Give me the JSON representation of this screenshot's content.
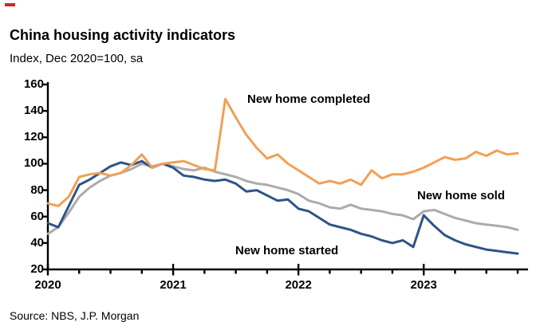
{
  "page": {
    "title": "China housing activity indicators",
    "subtitle": "Index, Dec 2020=100, sa",
    "source": "Source: NBS, J.P. Morgan",
    "accent_color": "#e02020",
    "axis_color": "#000000"
  },
  "chart_data": {
    "type": "line",
    "title": "China housing activity indicators",
    "subtitle": "Index, Dec 2020=100, sa",
    "x_unit": "month",
    "x_range": [
      "Jan 2020",
      "Oct 2023"
    ],
    "x_tick_labels": [
      "2020",
      "2021",
      "2022",
      "2023"
    ],
    "y_ticks": [
      20,
      40,
      60,
      80,
      100,
      120,
      140,
      160
    ],
    "ylim": [
      20,
      160
    ],
    "grid": false,
    "legend_position": "inline-annotations",
    "series": [
      {
        "name": "New home sold",
        "color": "#ABABAB",
        "values": [
          47,
          52,
          63,
          75,
          82,
          87,
          91,
          93,
          96,
          100,
          98,
          100,
          98,
          96,
          95,
          97,
          94,
          92,
          90,
          87,
          85,
          84,
          82,
          80,
          77,
          72,
          70,
          67,
          66,
          69,
          66,
          65,
          64,
          62,
          61,
          58,
          64,
          65,
          62,
          59,
          57,
          55,
          54,
          53,
          52,
          50
        ]
      },
      {
        "name": "New home started",
        "color": "#2F5488",
        "values": [
          55,
          52,
          68,
          84,
          88,
          93,
          98,
          101,
          99,
          102,
          97,
          100,
          97,
          91,
          90,
          88,
          87,
          88,
          85,
          79,
          80,
          76,
          72,
          73,
          66,
          64,
          59,
          54,
          52,
          50,
          47,
          45,
          42,
          40,
          42,
          37,
          61,
          53,
          46,
          42,
          39,
          37,
          35,
          34,
          33,
          32
        ]
      },
      {
        "name": "New home completed",
        "color": "#F0A055",
        "values": [
          70,
          68,
          75,
          90,
          92,
          93,
          91,
          93,
          99,
          107,
          97,
          100,
          101,
          102,
          99,
          96,
          95,
          149,
          135,
          122,
          112,
          104,
          107,
          100,
          95,
          90,
          85,
          87,
          85,
          88,
          84,
          95,
          89,
          92,
          92,
          94,
          97,
          101,
          105,
          103,
          104,
          109,
          106,
          110,
          107,
          108
        ]
      }
    ]
  }
}
